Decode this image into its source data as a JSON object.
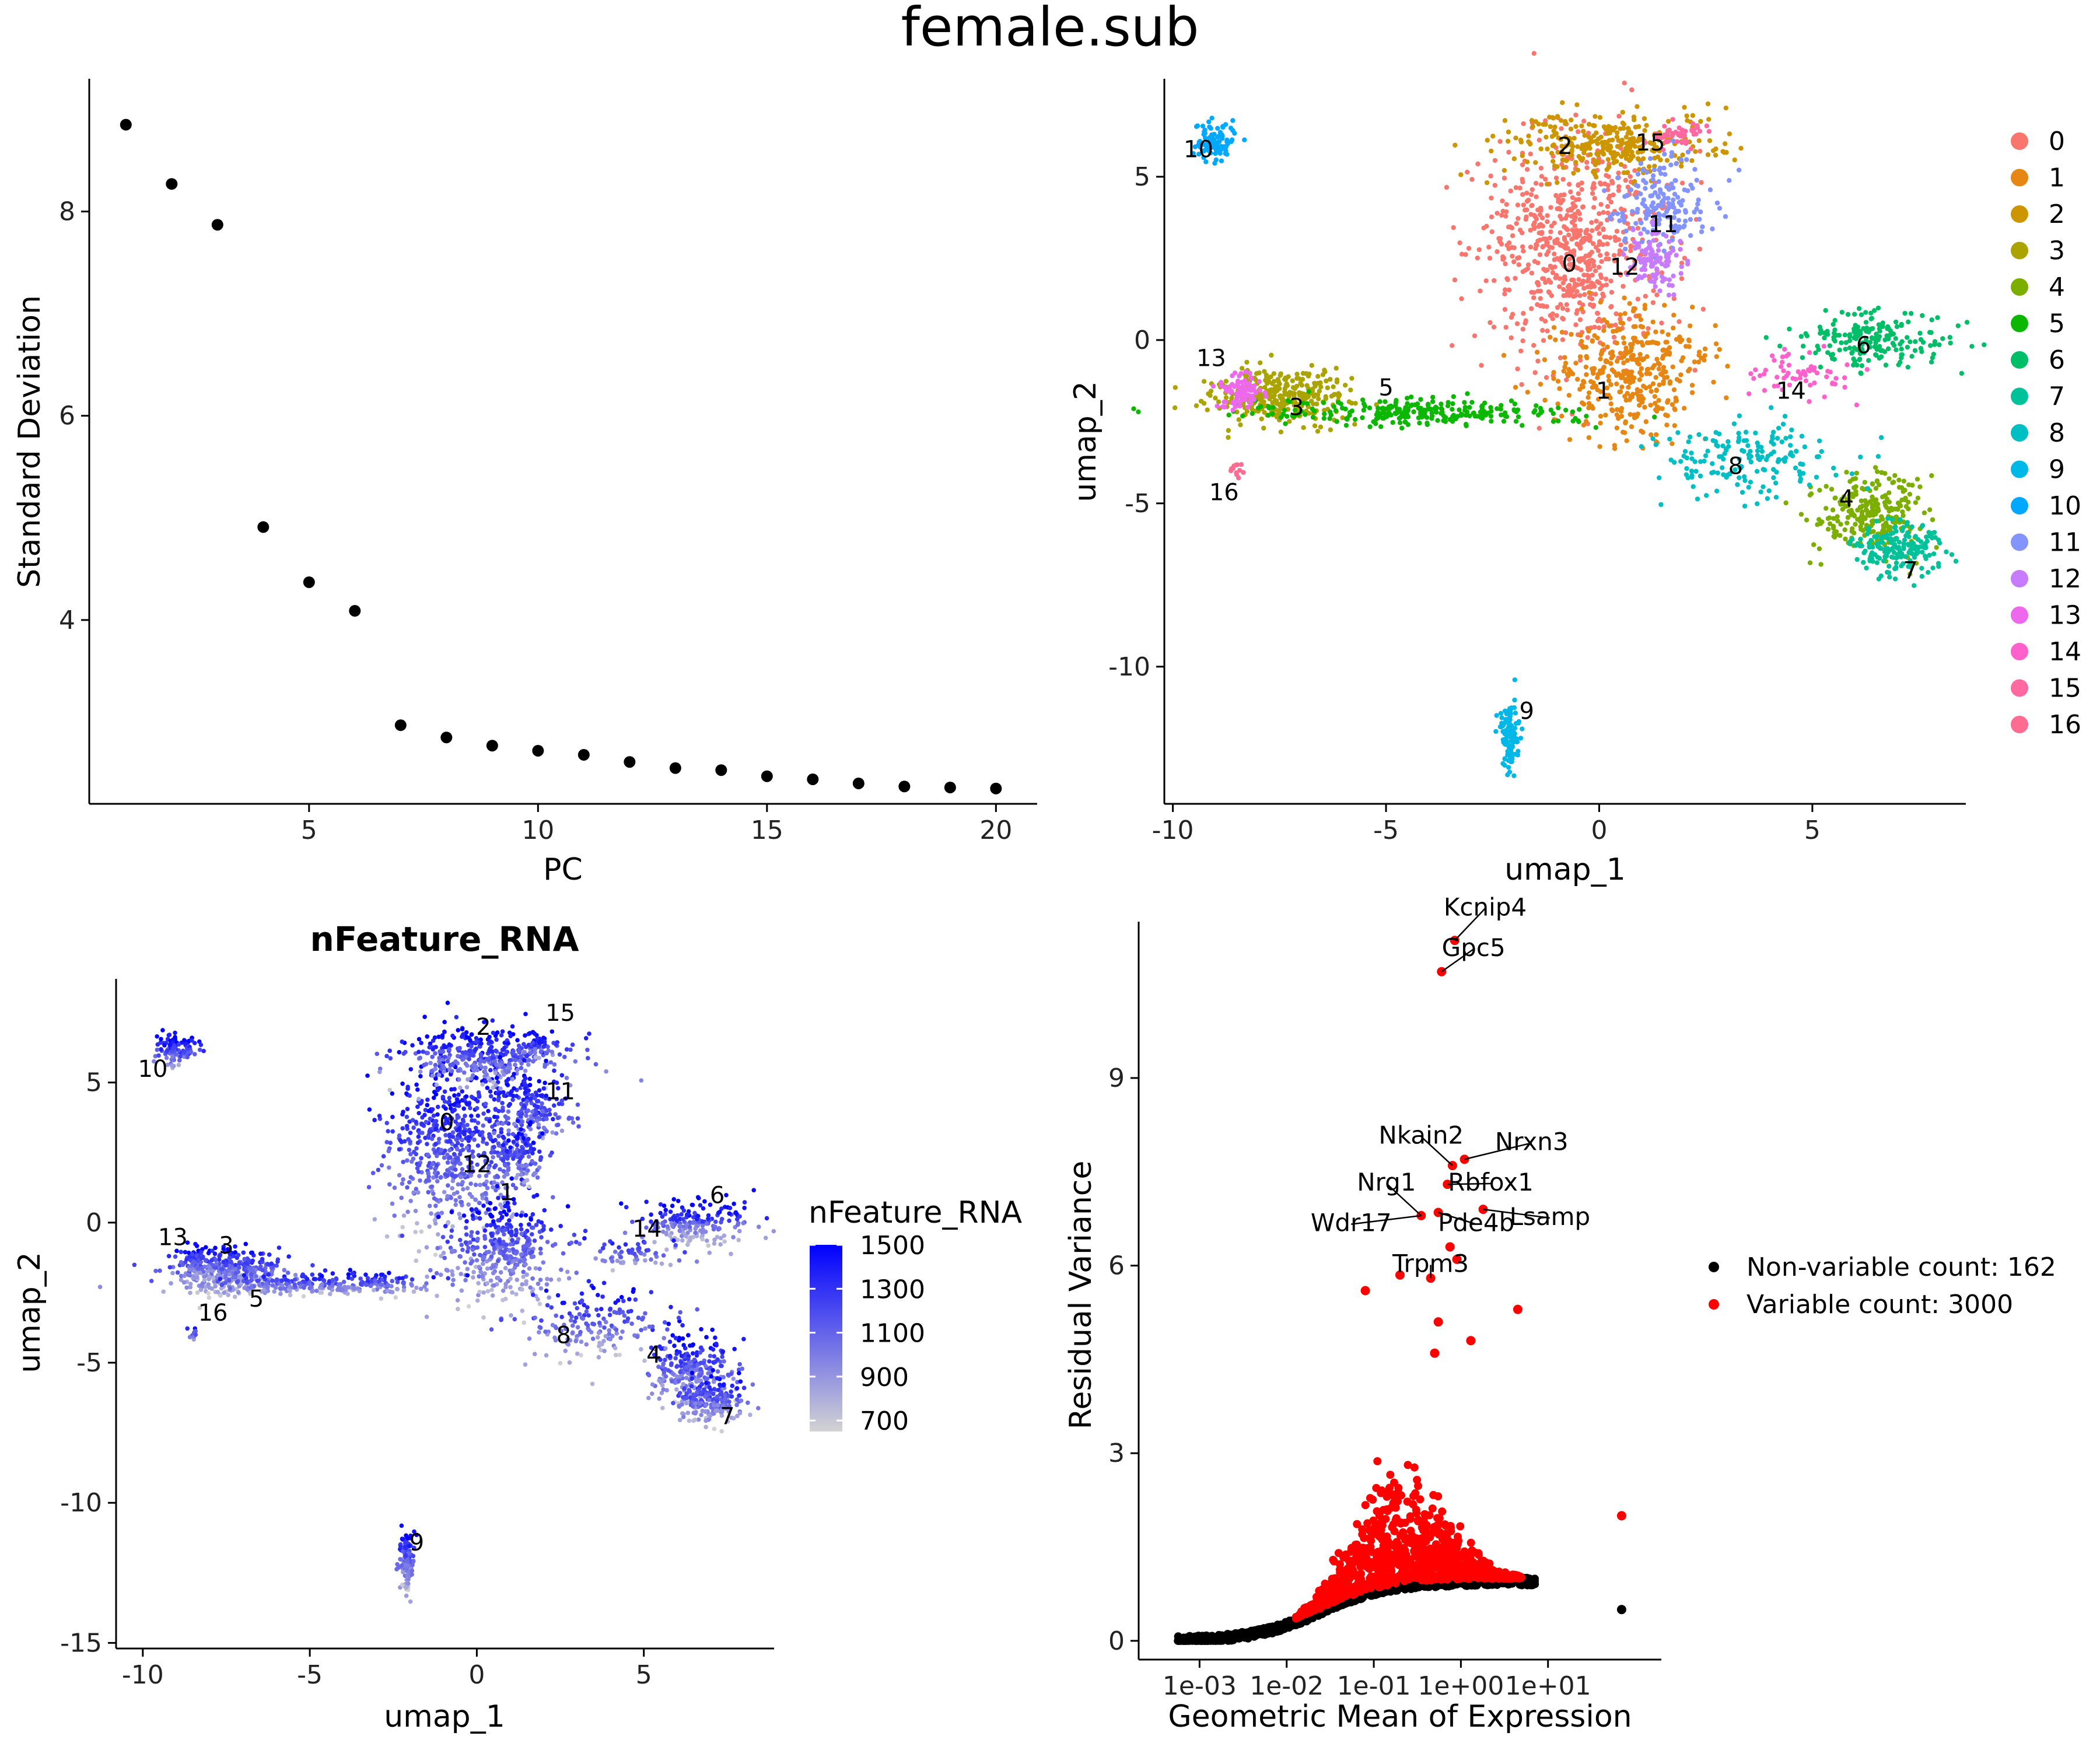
{
  "figure_title": "female.sub",
  "chart_data": [
    {
      "type": "scatter",
      "id": "elbow",
      "xlabel": "PC",
      "ylabel": "Standard Deviation",
      "xlim": [
        0.2,
        20.9
      ],
      "ylim": [
        2.2,
        9.3
      ],
      "xticks": [
        "5",
        "10",
        "15",
        "20"
      ],
      "yticks": [
        "4",
        "6",
        "8"
      ],
      "x": [
        1,
        2,
        3,
        4,
        5,
        6,
        7,
        8,
        9,
        10,
        11,
        12,
        13,
        14,
        15,
        16,
        17,
        18,
        19,
        20
      ],
      "y": [
        8.85,
        8.27,
        7.87,
        4.91,
        4.37,
        4.09,
        2.97,
        2.85,
        2.77,
        2.72,
        2.68,
        2.61,
        2.55,
        2.53,
        2.47,
        2.44,
        2.4,
        2.37,
        2.36,
        2.35
      ]
    },
    {
      "type": "scatter",
      "id": "umap_clusters",
      "xlabel": "umap_1",
      "ylabel": "umap_2",
      "xlim": [
        -10.2,
        8.6
      ],
      "ylim": [
        -14.2,
        8.0
      ],
      "xticks": [
        "-10",
        "-5",
        "0",
        "5"
      ],
      "yticks": [
        "-10",
        "-5",
        "0",
        "5"
      ],
      "legend": {
        "position": "right",
        "labels": [
          "0",
          "1",
          "2",
          "3",
          "4",
          "5",
          "6",
          "7",
          "8",
          "9",
          "10",
          "11",
          "12",
          "13",
          "14",
          "15",
          "16"
        ]
      },
      "series": [
        {
          "name": "0",
          "color": "#F8766D",
          "cx": -0.6,
          "cy": 2.8,
          "sx": 1.1,
          "sy": 1.6,
          "n": 700,
          "label_xy": [
            -0.7,
            2.1
          ]
        },
        {
          "name": "1",
          "color": "#E68613",
          "cx": 0.7,
          "cy": -1.0,
          "sx": 0.9,
          "sy": 1.0,
          "n": 380,
          "label_xy": [
            0.1,
            -1.8
          ]
        },
        {
          "name": "2",
          "color": "#CD9600",
          "cx": 0.3,
          "cy": 6.0,
          "sx": 1.2,
          "sy": 0.5,
          "n": 320,
          "label_xy": [
            -0.8,
            5.7
          ]
        },
        {
          "name": "3",
          "color": "#ABA300",
          "cx": -7.4,
          "cy": -1.7,
          "sx": 0.8,
          "sy": 0.4,
          "n": 320,
          "label_xy": [
            -7.1,
            -2.3
          ]
        },
        {
          "name": "4",
          "color": "#7CAE00",
          "cx": 6.4,
          "cy": -5.3,
          "sx": 0.6,
          "sy": 0.6,
          "n": 260,
          "label_xy": [
            5.8,
            -5.1
          ]
        },
        {
          "name": "5",
          "color": "#0CB702",
          "cx": -4.5,
          "cy": -2.2,
          "sx": 1.8,
          "sy": 0.2,
          "n": 260,
          "label_xy": [
            -5.0,
            -1.7
          ]
        },
        {
          "name": "6",
          "color": "#00BE67",
          "cx": 6.5,
          "cy": 0.0,
          "sx": 0.9,
          "sy": 0.4,
          "n": 200,
          "label_xy": [
            6.2,
            -0.4
          ]
        },
        {
          "name": "7",
          "color": "#00C19A",
          "cx": 7.0,
          "cy": -6.4,
          "sx": 0.5,
          "sy": 0.4,
          "n": 180,
          "label_xy": [
            7.3,
            -7.3
          ]
        },
        {
          "name": "8",
          "color": "#00BFC4",
          "cx": 3.6,
          "cy": -3.6,
          "sx": 1.1,
          "sy": 0.6,
          "n": 170,
          "label_xy": [
            3.2,
            -4.1
          ]
        },
        {
          "name": "9",
          "color": "#00B8E7",
          "cx": -2.1,
          "cy": -12.1,
          "sx": 0.12,
          "sy": 0.5,
          "n": 110,
          "label_xy": [
            -1.7,
            -11.6
          ]
        },
        {
          "name": "10",
          "color": "#00A9FF",
          "cx": -9.0,
          "cy": 6.1,
          "sx": 0.3,
          "sy": 0.3,
          "n": 100,
          "label_xy": [
            -9.4,
            5.6
          ]
        },
        {
          "name": "11",
          "color": "#8494FF",
          "cx": 1.6,
          "cy": 4.1,
          "sx": 0.6,
          "sy": 0.7,
          "n": 170,
          "label_xy": [
            1.5,
            3.3
          ]
        },
        {
          "name": "12",
          "color": "#C77CFF",
          "cx": 1.3,
          "cy": 2.4,
          "sx": 0.3,
          "sy": 0.5,
          "n": 100,
          "label_xy": [
            0.6,
            2.0
          ]
        },
        {
          "name": "13",
          "color": "#ED68ED",
          "cx": -8.4,
          "cy": -1.5,
          "sx": 0.25,
          "sy": 0.3,
          "n": 80,
          "label_xy": [
            -9.1,
            -0.8
          ]
        },
        {
          "name": "14",
          "color": "#FF61CC",
          "cx": 4.7,
          "cy": -1.1,
          "sx": 0.7,
          "sy": 0.3,
          "n": 60,
          "label_xy": [
            4.5,
            -1.8
          ]
        },
        {
          "name": "15",
          "color": "#FF68A1",
          "cx": 1.8,
          "cy": 6.3,
          "sx": 0.3,
          "sy": 0.2,
          "n": 50,
          "label_xy": [
            1.2,
            5.8
          ]
        },
        {
          "name": "16",
          "color": "#FF6C91",
          "cx": -8.5,
          "cy": -4.0,
          "sx": 0.08,
          "sy": 0.15,
          "n": 12,
          "label_xy": [
            -8.8,
            -4.9
          ]
        }
      ]
    },
    {
      "type": "scatter",
      "id": "feature_plot",
      "title": "nFeature_RNA",
      "xlabel": "umap_1",
      "ylabel": "umap_2",
      "xlim": [
        -10.8,
        8.9
      ],
      "ylim": [
        -15.2,
        8.7
      ],
      "xticks": [
        "-10",
        "-5",
        "0",
        "5"
      ],
      "yticks": [
        "-15",
        "-10",
        "-5",
        "0",
        "5"
      ],
      "colorbar": {
        "title": "nFeature_RNA",
        "min": 650,
        "max": 1500,
        "ticks": [
          "1500",
          "1300",
          "1100",
          "900",
          "700"
        ],
        "low_color": "#d3d3d3",
        "high_color": "#0000ff"
      },
      "cluster_labels": [
        {
          "text": "0",
          "x": -0.9,
          "y": 3.3
        },
        {
          "text": "1",
          "x": 0.9,
          "y": 0.8
        },
        {
          "text": "2",
          "x": 0.2,
          "y": 6.7
        },
        {
          "text": "3",
          "x": -7.5,
          "y": -1.1
        },
        {
          "text": "4",
          "x": 5.3,
          "y": -5.0
        },
        {
          "text": "5",
          "x": -6.6,
          "y": -3.0
        },
        {
          "text": "6",
          "x": 7.2,
          "y": 0.7
        },
        {
          "text": "7",
          "x": 7.5,
          "y": -7.2
        },
        {
          "text": "8",
          "x": 2.6,
          "y": -4.3
        },
        {
          "text": "9",
          "x": -1.8,
          "y": -11.7
        },
        {
          "text": "10",
          "x": -9.7,
          "y": 5.2
        },
        {
          "text": "11",
          "x": 2.5,
          "y": 4.4
        },
        {
          "text": "12",
          "x": 0.0,
          "y": 1.8
        },
        {
          "text": "13",
          "x": -9.1,
          "y": -0.8
        },
        {
          "text": "14",
          "x": 5.1,
          "y": -0.5
        },
        {
          "text": "15",
          "x": 2.5,
          "y": 7.2
        },
        {
          "text": "16",
          "x": -7.9,
          "y": -3.5
        }
      ]
    },
    {
      "type": "scatter",
      "id": "variable_features",
      "xlabel": "Geometric Mean of Expression",
      "ylabel": "Residual Variance",
      "xscale": "log10",
      "xlim": [
        0.0002,
        200
      ],
      "ylim": [
        -0.3,
        11.5
      ],
      "xticks": [
        "1e-03",
        "1e-02",
        "1e-01",
        "1e+00",
        "1e+01"
      ],
      "yticks": [
        "0",
        "3",
        "6",
        "9"
      ],
      "legend": {
        "position": "right",
        "entries": [
          {
            "label": "Non-variable count: 162",
            "color": "#000000"
          },
          {
            "label": "Variable count: 3000",
            "color": "#ff0000"
          }
        ]
      },
      "outliers": [
        {
          "x": 0.85,
          "y": 11.2,
          "color": "#ff0000"
        },
        {
          "x": 0.6,
          "y": 10.7,
          "color": "#ff0000"
        },
        {
          "x": 1.1,
          "y": 7.7,
          "color": "#ff0000"
        },
        {
          "x": 0.8,
          "y": 7.6,
          "color": "#ff0000"
        },
        {
          "x": 0.7,
          "y": 7.3,
          "color": "#ff0000"
        },
        {
          "x": 0.35,
          "y": 6.8,
          "color": "#ff0000"
        },
        {
          "x": 1.8,
          "y": 6.9,
          "color": "#ff0000"
        },
        {
          "x": 0.55,
          "y": 6.85,
          "color": "#ff0000"
        },
        {
          "x": 0.75,
          "y": 6.3,
          "color": "#ff0000"
        },
        {
          "x": 0.9,
          "y": 6.1,
          "color": "#ff0000"
        },
        {
          "x": 0.45,
          "y": 5.8,
          "color": "#ff0000"
        },
        {
          "x": 0.08,
          "y": 5.6,
          "color": "#ff0000"
        },
        {
          "x": 0.2,
          "y": 5.85,
          "color": "#ff0000"
        },
        {
          "x": 4.5,
          "y": 5.3,
          "color": "#ff0000"
        },
        {
          "x": 0.55,
          "y": 5.1,
          "color": "#ff0000"
        },
        {
          "x": 1.3,
          "y": 4.8,
          "color": "#ff0000"
        },
        {
          "x": 0.5,
          "y": 4.6,
          "color": "#ff0000"
        },
        {
          "x": 70,
          "y": 2.0,
          "color": "#ff0000"
        },
        {
          "x": 70,
          "y": 0.5,
          "color": "#000000"
        }
      ],
      "gene_labels": [
        {
          "text": "Kcnip4",
          "x": 0.85,
          "y": 11.2,
          "tx": 1.9,
          "ty": 11.6
        },
        {
          "text": "Gpc5",
          "x": 0.6,
          "y": 10.7,
          "tx": 1.4,
          "ty": 10.95
        },
        {
          "text": "Nkain2",
          "x": 0.8,
          "y": 7.6,
          "tx": 0.35,
          "ty": 7.95
        },
        {
          "text": "Nrxn3",
          "x": 1.1,
          "y": 7.7,
          "tx": 6.5,
          "ty": 7.85
        },
        {
          "text": "Nrg1",
          "x": 0.35,
          "y": 6.8,
          "tx": 0.14,
          "ty": 7.2
        },
        {
          "text": "Rbfox1",
          "x": 0.7,
          "y": 7.3,
          "tx": 2.2,
          "ty": 7.2
        },
        {
          "text": "Wdr17",
          "x": 0.35,
          "y": 6.8,
          "tx": 0.055,
          "ty": 6.55
        },
        {
          "text": "Pde4b",
          "x": 0.55,
          "y": 6.85,
          "tx": 1.5,
          "ty": 6.55
        },
        {
          "text": "Lsamp",
          "x": 1.8,
          "y": 6.9,
          "tx": 10.5,
          "ty": 6.65
        },
        {
          "text": "Trpm3",
          "x": 0.45,
          "y": 5.8,
          "tx": 0.45,
          "ty": 5.9
        }
      ]
    }
  ]
}
